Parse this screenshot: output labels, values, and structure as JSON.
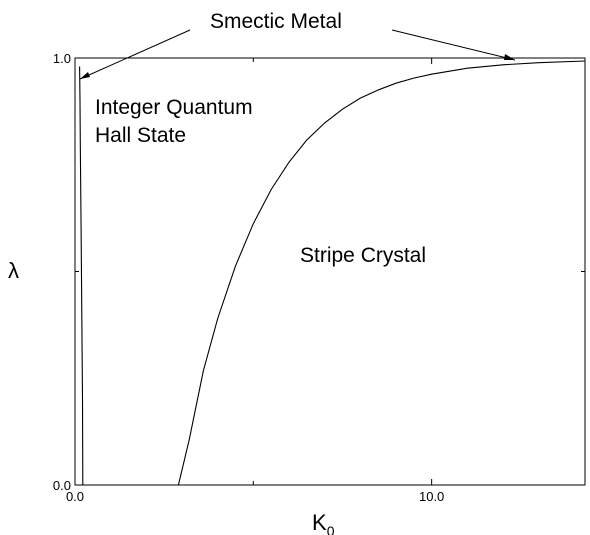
{
  "chart_data": {
    "type": "line",
    "xlabel": "K",
    "xlabel_subscript": "0",
    "ylabel": "λ",
    "xlim": [
      0,
      14.3
    ],
    "ylim": [
      0,
      1.0
    ],
    "x_ticks": [
      {
        "value": 0,
        "label": "0.0"
      },
      {
        "value": 10,
        "label": "10.0"
      }
    ],
    "y_ticks": [
      {
        "value": 0,
        "label": "0.0"
      },
      {
        "value": 1,
        "label": "1.0"
      }
    ],
    "minor_ticks": {
      "x": [
        5
      ],
      "y": [
        0.5
      ]
    },
    "series": [
      {
        "x": [
          2.9,
          3.2,
          3.6,
          4.0,
          4.5,
          5.0,
          5.5,
          6.0,
          6.5,
          7.0,
          7.5,
          8.0,
          8.5,
          9.0,
          9.5,
          10.0,
          11.0,
          12.0,
          13.0,
          14.3
        ],
        "y": [
          0.0,
          0.105,
          0.268,
          0.39,
          0.513,
          0.612,
          0.692,
          0.756,
          0.808,
          0.848,
          0.88,
          0.906,
          0.925,
          0.941,
          0.953,
          0.962,
          0.976,
          0.984,
          0.989,
          0.993
        ]
      },
      {
        "x": [
          0.22,
          0.21,
          0.19,
          0.17,
          0.15,
          0.14,
          0.13
        ],
        "y": [
          0.0,
          0.2,
          0.4,
          0.6,
          0.8,
          0.9,
          0.98
        ]
      }
    ],
    "annotations": [
      {
        "text": "Smectic Metal"
      },
      {
        "text": "Integer Quantum"
      },
      {
        "text": "Hall State"
      },
      {
        "text": "Stripe Crystal"
      }
    ],
    "grid": false
  }
}
